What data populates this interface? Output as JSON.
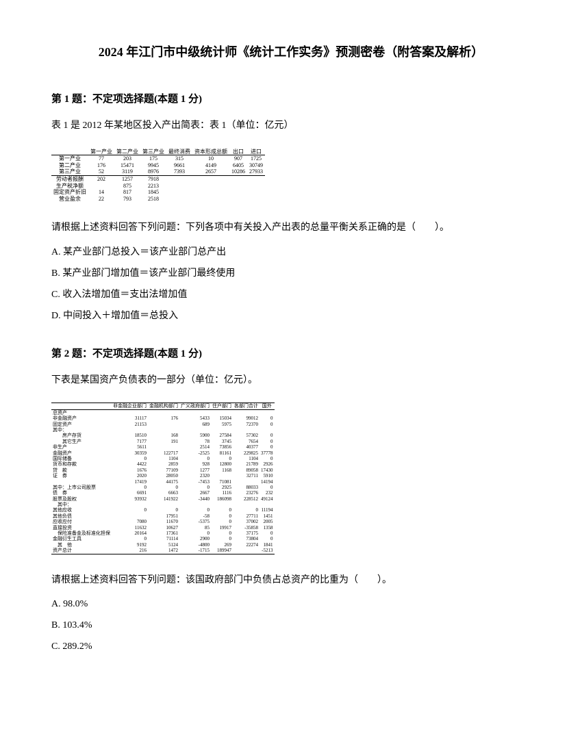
{
  "doc_title": "2024 年江门市中级统计师《统计工作实务》预测密卷（附答案及解析）",
  "q1": {
    "header": "第 1 题：不定项选择题(本题 1 分)",
    "intro": "表 1 是 2012 年某地区投入产出简表：表 1（单位：亿元）",
    "table_headers": [
      "",
      "第一产业",
      "第二产业",
      "第三产业",
      "最终消费",
      "资本形成总额",
      "出口",
      "进口"
    ],
    "table_rows": [
      {
        "label": "第一产业",
        "cells": [
          "77",
          "203",
          "175",
          "315",
          "10",
          "907",
          "1725"
        ]
      },
      {
        "label": "第二产业",
        "cells": [
          "176",
          "15471",
          "9945",
          "9661",
          "4149",
          "6405",
          "30749"
        ]
      },
      {
        "label": "第三产业",
        "cells": [
          "52",
          "3119",
          "8976",
          "7393",
          "2657",
          "10286",
          "27933"
        ]
      }
    ],
    "table_rows2": [
      {
        "label": "劳动者报酬",
        "cells": [
          "202",
          "1257",
          "7918"
        ]
      },
      {
        "label": "生产税净额",
        "cells": [
          "",
          "875",
          "2213"
        ]
      },
      {
        "label": "固定资产折旧",
        "cells": [
          "14",
          "817",
          "1845"
        ]
      },
      {
        "label": "营业盈余",
        "cells": [
          "22",
          "793",
          "2518"
        ]
      }
    ],
    "prompt": "请根据上述资料回答下列问题：下列各项中有关投入产出表的总量平衡关系正确的是（　　）。",
    "options": {
      "A": "A. 某产业部门总投入＝该产业部门总产出",
      "B": "B. 某产业部门增加值＝该产业部门最终使用",
      "C": "C. 收入法增加值＝支出法增加值",
      "D": "D. 中间投入＋增加值＝总投入"
    }
  },
  "q2": {
    "header": "第 2 题：不定项选择题(本题 1 分)",
    "intro": "下表是某国资产负债表的一部分（单位：亿元）。",
    "table_headers": [
      "",
      "非金融企业部门",
      "金融机构部门",
      "广义政府部门",
      "住户部门",
      "各部门合计",
      "国外"
    ],
    "table_rows": [
      {
        "label": "总资产",
        "cells": [
          "",
          "",
          "",
          "",
          "",
          ""
        ]
      },
      {
        "label": "非金融资产",
        "cells": [
          "31117",
          "176",
          "5433",
          "15034",
          "99012",
          "0"
        ]
      },
      {
        "label": "固定资产",
        "cells": [
          "21153",
          "",
          "689",
          "5975",
          "72370",
          "0"
        ]
      },
      {
        "label": "其中：",
        "cells": [
          "",
          "",
          "",
          "",
          "",
          ""
        ],
        "indent": true
      },
      {
        "label": "　　房产存货",
        "cells": [
          "18510",
          "168",
          "5900",
          "27584",
          "57302",
          "0"
        ]
      },
      {
        "label": "　　其它生产",
        "cells": [
          "7177",
          "191",
          "78",
          "3745",
          "7654",
          "0"
        ]
      },
      {
        "label": "非生产",
        "cells": [
          "5611",
          "",
          "2514",
          "73856",
          "40377",
          "0"
        ]
      },
      {
        "label": "金融资产",
        "cells": [
          "30359",
          "122717",
          "-2525",
          "81161",
          "229825",
          "37778"
        ]
      },
      {
        "label": "国际储备",
        "cells": [
          "0",
          "1104",
          "0",
          "0",
          "1104",
          "0"
        ]
      },
      {
        "label": "货币和存款",
        "cells": [
          "4422",
          "2859",
          "928",
          "12800",
          "21789",
          "2926"
        ]
      },
      {
        "label": "贷　款",
        "cells": [
          "1676",
          "77109",
          "1277",
          "1168",
          "89058",
          "17430"
        ]
      },
      {
        "label": "证　券",
        "cells": [
          "2020",
          "28050",
          "2320",
          "",
          "32711",
          "5910"
        ]
      },
      {
        "label": "　　　",
        "cells": [
          "17419",
          "44175",
          "-7453",
          "71081",
          "",
          "14194"
        ]
      },
      {
        "label": "其中：上市公司股票",
        "cells": [
          "0",
          "0",
          "0",
          "2925",
          "88033",
          "0"
        ]
      },
      {
        "label": "债　券",
        "cells": [
          "6691",
          "6663",
          "2667",
          "1116",
          "23276",
          "232"
        ]
      },
      {
        "label": "股票及股权",
        "cells": [
          "93932",
          "141922",
          "-3440",
          "186098",
          "228512",
          "49124"
        ]
      },
      {
        "label": "　其中：",
        "cells": [
          "",
          "",
          "",
          "",
          "",
          ""
        ],
        "indent": true
      },
      {
        "label": "其他应收",
        "cells": [
          "0",
          "0",
          "0",
          "0",
          "0",
          "11194"
        ]
      },
      {
        "label": "其他负债",
        "cells": [
          "",
          "17951",
          "-58",
          "0",
          "27711",
          "1451"
        ]
      },
      {
        "label": "应收应付",
        "cells": [
          "7080",
          "11670",
          "-5375",
          "0",
          "37002",
          "2005"
        ]
      },
      {
        "label": "直接投资",
        "cells": [
          "11632",
          "10627",
          "85",
          "19917",
          "-35858",
          "1358"
        ]
      },
      {
        "label": "　保险准备金及标准化担保",
        "cells": [
          "20164",
          "17361",
          "0",
          "0",
          "37175",
          "0"
        ]
      },
      {
        "label": "金融衍生工具",
        "cells": [
          "0",
          "71114",
          "2900",
          "0",
          "73804",
          "0"
        ]
      },
      {
        "label": "　其　他",
        "cells": [
          "9192",
          "5124",
          "-4800",
          "269",
          "22274",
          "1841"
        ]
      },
      {
        "label": "资产总计",
        "cells": [
          "216",
          "1472",
          "-1715",
          "189947",
          "",
          "-5213"
        ]
      }
    ],
    "prompt": "请根据上述资料回答下列问题：该国政府部门中负债占总资产的比重为（　　）。",
    "options": {
      "A": "A. 98.0%",
      "B": "B. 103.4%",
      "C": "C. 289.2%"
    }
  }
}
